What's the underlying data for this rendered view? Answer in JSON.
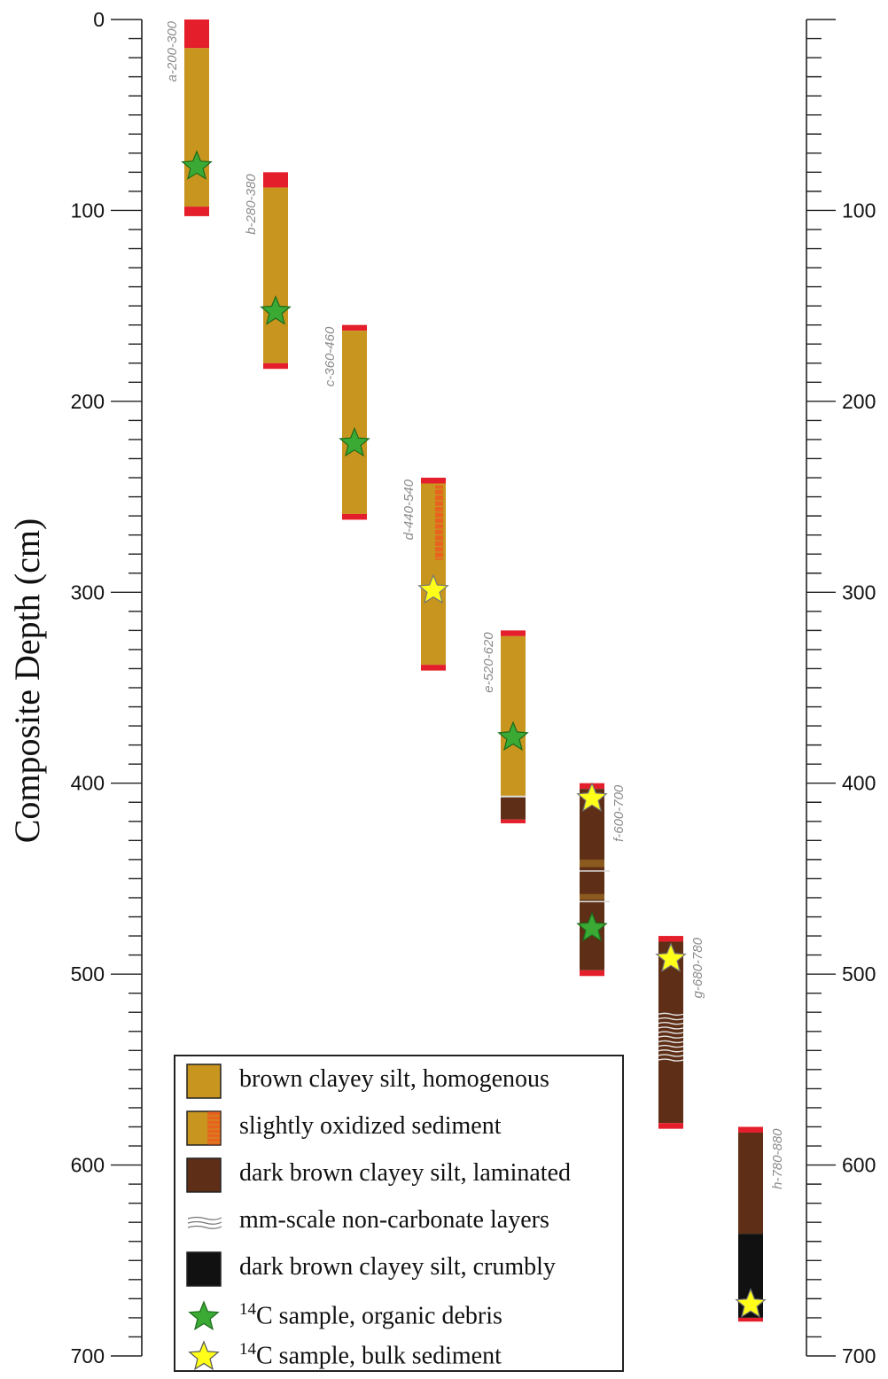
{
  "axis": {
    "title": "Composite Depth (cm)",
    "min": 0,
    "max": 700,
    "major_ticks": [
      0,
      100,
      200,
      300,
      400,
      500,
      600,
      700
    ],
    "left_labels": [
      "0",
      "100",
      "200",
      "300",
      "400",
      "500",
      "600",
      "700"
    ],
    "right_labels": [
      "100",
      "200",
      "300",
      "400",
      "500",
      "600",
      "700"
    ],
    "minor_tick_step": 10
  },
  "colors": {
    "brown_homogenous": "#c8961e",
    "oxidized": "#e8631e",
    "dark_brown_laminated": "#5e2e16",
    "crumbly": "#111111",
    "core_end": "#e41e2a",
    "organic_star": "#3aaa35",
    "bulk_star": "#ffff1a"
  },
  "cores": [
    {
      "label": "a-200-300",
      "top": 0,
      "bottom": 103,
      "segments": [
        {
          "from": 0,
          "to": 15,
          "type": "core_end"
        },
        {
          "from": 15,
          "to": 98,
          "type": "brown_homogenous"
        },
        {
          "from": 98,
          "to": 103,
          "type": "core_end"
        }
      ],
      "samples": [
        {
          "depth": 77,
          "type": "organic"
        }
      ]
    },
    {
      "label": "b-280-380",
      "top": 80,
      "bottom": 183,
      "segments": [
        {
          "from": 80,
          "to": 88,
          "type": "core_end"
        },
        {
          "from": 88,
          "to": 180,
          "type": "brown_homogenous"
        },
        {
          "from": 180,
          "to": 183,
          "type": "core_end"
        }
      ],
      "samples": [
        {
          "depth": 153,
          "type": "organic"
        }
      ]
    },
    {
      "label": "c-360-460",
      "top": 160,
      "bottom": 262,
      "segments": [
        {
          "from": 160,
          "to": 163,
          "type": "core_end"
        },
        {
          "from": 163,
          "to": 259,
          "type": "brown_homogenous"
        },
        {
          "from": 259,
          "to": 262,
          "type": "core_end"
        }
      ],
      "samples": [
        {
          "depth": 222,
          "type": "organic"
        }
      ]
    },
    {
      "label": "d-440-540",
      "top": 240,
      "bottom": 341,
      "segments": [
        {
          "from": 240,
          "to": 243,
          "type": "core_end"
        },
        {
          "from": 243,
          "to": 338,
          "type": "brown_homogenous"
        },
        {
          "from": 338,
          "to": 341,
          "type": "core_end"
        }
      ],
      "samples": [
        {
          "depth": 299,
          "type": "bulk"
        }
      ]
    },
    {
      "label": "e-520-620",
      "top": 320,
      "bottom": 421,
      "segments": [
        {
          "from": 320,
          "to": 323,
          "type": "core_end"
        },
        {
          "from": 323,
          "to": 407,
          "type": "brown_homogenous"
        },
        {
          "from": 407,
          "to": 419,
          "type": "dark_brown_laminated"
        },
        {
          "from": 419,
          "to": 421,
          "type": "core_end"
        }
      ],
      "samples": [
        {
          "depth": 376,
          "type": "organic"
        }
      ]
    },
    {
      "label": "f-600-700",
      "top": 400,
      "bottom": 501,
      "segments": [
        {
          "from": 400,
          "to": 403,
          "type": "core_end"
        },
        {
          "from": 403,
          "to": 498,
          "type": "dark_brown_laminated"
        },
        {
          "from": 498,
          "to": 501,
          "type": "core_end"
        }
      ],
      "samples": [
        {
          "depth": 408,
          "type": "bulk"
        },
        {
          "depth": 476,
          "type": "organic"
        }
      ]
    },
    {
      "label": "g-680-780",
      "top": 480,
      "bottom": 581,
      "segments": [
        {
          "from": 480,
          "to": 483,
          "type": "core_end"
        },
        {
          "from": 483,
          "to": 578,
          "type": "dark_brown_laminated"
        },
        {
          "from": 578,
          "to": 581,
          "type": "core_end"
        }
      ],
      "samples": [
        {
          "depth": 492,
          "type": "bulk"
        }
      ]
    },
    {
      "label": "h-780-880",
      "top": 580,
      "bottom": 682,
      "segments": [
        {
          "from": 580,
          "to": 583,
          "type": "core_end"
        },
        {
          "from": 583,
          "to": 636,
          "type": "dark_brown_laminated"
        },
        {
          "from": 636,
          "to": 680,
          "type": "crumbly"
        },
        {
          "from": 680,
          "to": 682,
          "type": "core_end"
        }
      ],
      "samples": [
        {
          "depth": 673,
          "type": "bulk"
        }
      ]
    }
  ],
  "legend": {
    "brown": "brown clayey silt, homogenous",
    "oxidized": "slightly oxidized sediment",
    "dark_brown": "dark brown clayey silt, laminated",
    "mm_layers": "mm-scale non-carbonate layers",
    "crumbly": "dark brown clayey silt, crumbly",
    "organic_sup": "14",
    "organic_text": "C sample, organic debris",
    "bulk_sup": "14",
    "bulk_text": "C sample, bulk sediment"
  }
}
